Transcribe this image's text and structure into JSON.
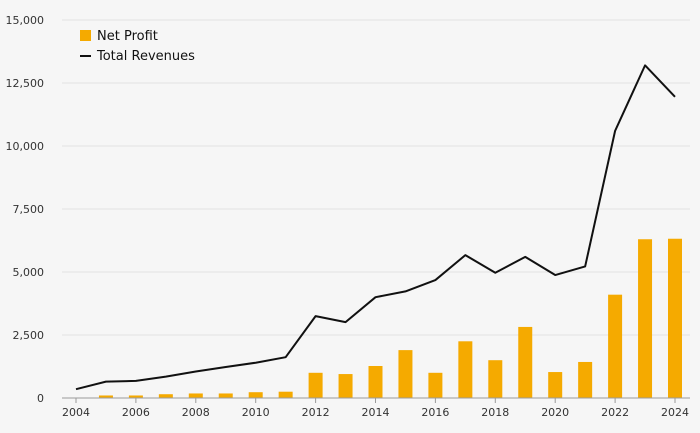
{
  "chart_data": {
    "type": "bar",
    "x": [
      2004,
      2005,
      2006,
      2007,
      2008,
      2009,
      2010,
      2011,
      2012,
      2013,
      2014,
      2015,
      2016,
      2017,
      2018,
      2019,
      2020,
      2021,
      2022,
      2023,
      2024
    ],
    "x_tick_labels": [
      "2004",
      "2006",
      "2008",
      "2010",
      "2012",
      "2014",
      "2016",
      "2018",
      "2020",
      "2022",
      "2024"
    ],
    "y_tick_labels": [
      "0",
      "2,500",
      "5,000",
      "7,500",
      "10,000",
      "12,500",
      "15,000"
    ],
    "ylim": [
      0,
      15000
    ],
    "grid": "horizontal",
    "legend_placement": "top-left",
    "series": [
      {
        "name": "Net Profit",
        "type": "bar",
        "color": "#f5aa00",
        "values": [
          null,
          100,
          100,
          150,
          180,
          180,
          230,
          250,
          1000,
          950,
          1270,
          1900,
          1000,
          2250,
          1500,
          2820,
          1030,
          1430,
          4100,
          6300,
          6320
        ]
      },
      {
        "name": "Total Revenues",
        "type": "line",
        "color": "#111111",
        "values": [
          350,
          650,
          680,
          850,
          1050,
          1230,
          1400,
          1620,
          3250,
          3010,
          4000,
          4230,
          4680,
          5670,
          4970,
          5600,
          4880,
          5220,
          10600,
          13200,
          11950
        ]
      }
    ]
  }
}
